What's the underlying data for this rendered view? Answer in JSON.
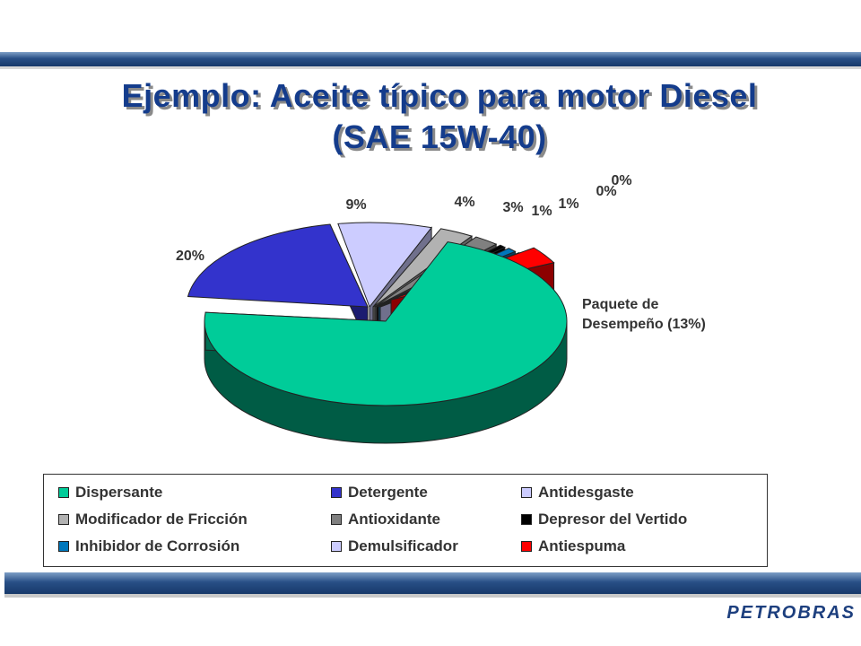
{
  "title": {
    "line1": "Ejemplo: Aceite típico para motor Diesel",
    "line2": "(SAE 15W-40)"
  },
  "annotation": {
    "line1": "Paquete de",
    "line2": "Desempeño (13%)"
  },
  "colors": {
    "header_band": "#284f86",
    "title_text": "#143c8c"
  },
  "chart_data": {
    "type": "pie",
    "style": "3d-exploded",
    "categories": [
      "Dispersante",
      "Detergente",
      "Antidesgaste",
      "Modificador de Fricción",
      "Antioxidante",
      "Depresor del Vertido",
      "Inhibidor de Corrosión",
      "Demulsificador",
      "Antiespuma"
    ],
    "values": [
      null,
      20,
      9,
      4,
      3,
      1,
      1,
      0,
      0
    ],
    "data_labels": [
      "",
      "20%",
      "9%",
      "4%",
      "3%",
      "1%",
      "1%",
      "0%",
      "0%"
    ],
    "colors": [
      "#00cc99",
      "#3333cc",
      "#ccccff",
      "#b2b2b2",
      "#808080",
      "#000000",
      "#0077bb",
      "#ccccff",
      "#ff0000"
    ],
    "legend_position": "bottom"
  },
  "legend": {
    "items": [
      {
        "label": "Dispersante",
        "color": "#00cc99"
      },
      {
        "label": "Detergente",
        "color": "#3333cc"
      },
      {
        "label": "Antidesgaste",
        "color": "#ccccff"
      },
      {
        "label": "Modificador de Fricción",
        "color": "#b2b2b2"
      },
      {
        "label": "Antioxidante",
        "color": "#808080"
      },
      {
        "label": "Depresor del Vertido",
        "color": "#000000"
      },
      {
        "label": "Inhibidor de Corrosión",
        "color": "#0077bb"
      },
      {
        "label": "Demulsificador",
        "color": "#ccccff"
      },
      {
        "label": "Antiespuma",
        "color": "#ff0000"
      }
    ]
  },
  "logo": {
    "text": "PETROBRAS"
  }
}
